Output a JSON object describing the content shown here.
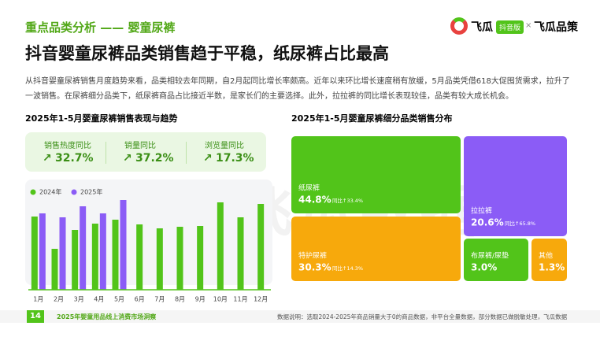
{
  "header": {
    "section": "重点品类分析 —— 婴童尿裤",
    "brand": "飞瓜",
    "badge": "抖音版",
    "cross": "×",
    "partner": "飞瓜品策"
  },
  "title": "抖音婴童尿裤品类销售趋于平稳，纸尿裤占比最高",
  "paragraph": "从抖音婴童尿裤销售月度趋势来看，品类相较去年同期，自2月起同比增长率颇高。近年以来环比增长速度稍有放缓，5月品类凭借618大促囤货需求，拉升了一波销售。在尿裤细分品类下，纸尿裤商品占比接近半数，是家长们的主要选择。此外，拉拉裤的同比增长表现较佳，品类有较大成长机会。",
  "watermark": "飞瓜数据",
  "stats": [
    {
      "label": "销售热度同比",
      "value": 32.7,
      "value_label": "32.7%"
    },
    {
      "label": "销量同比",
      "value": 37.2,
      "value_label": "37.2%"
    },
    {
      "label": "浏览量同比",
      "value": 17.3,
      "value_label": "17.3%"
    }
  ],
  "chart_data": [
    {
      "type": "bar",
      "title": "2025年1-5月婴童尿裤销售表现与趋势",
      "categories": [
        "1月",
        "2月",
        "3月",
        "4月",
        "5月",
        "6月",
        "7月",
        "8月",
        "9月",
        "10月",
        "11月",
        "12月"
      ],
      "series": [
        {
          "name": "2024年",
          "color": "#52c41a",
          "values": [
            93,
            52,
            76,
            84,
            89,
            83,
            78,
            80,
            81,
            111,
            92,
            109
          ]
        },
        {
          "name": "2025年",
          "color": "#8b5cf6",
          "values": [
            97,
            92,
            106,
            97,
            114,
            null,
            null,
            null,
            null,
            null,
            null,
            null
          ]
        }
      ]
    },
    {
      "type": "treemap",
      "title": "2025年1-5月婴童尿裤细分品类销售分布",
      "categories": [
        "纸尿裤",
        "拉拉裤",
        "特护尿裤",
        "布尿裤/尿垫",
        "其他"
      ],
      "values": [
        44.8,
        20.6,
        30.3,
        3.0,
        1.3
      ],
      "value_labels": [
        "44.8%",
        "20.6%",
        "30.3%",
        "3.0%",
        "1.3%"
      ],
      "yoy_labels": [
        "同比↑33.4%",
        "同比↑65.8%",
        "同比↑14.3%",
        null,
        null
      ],
      "colors": [
        "#52c41a",
        "#8b5cf6",
        "#f7a90c",
        "#52c41a",
        "#f7a90c"
      ]
    }
  ],
  "footer": {
    "page": "14",
    "report": "2025年婴童用品线上消费市场洞察",
    "note": "数据说明：选取2024-2025年商品销量大于0的商品数据，非平台全量数据，部分数据已做脱敏处理，飞瓜数据"
  }
}
